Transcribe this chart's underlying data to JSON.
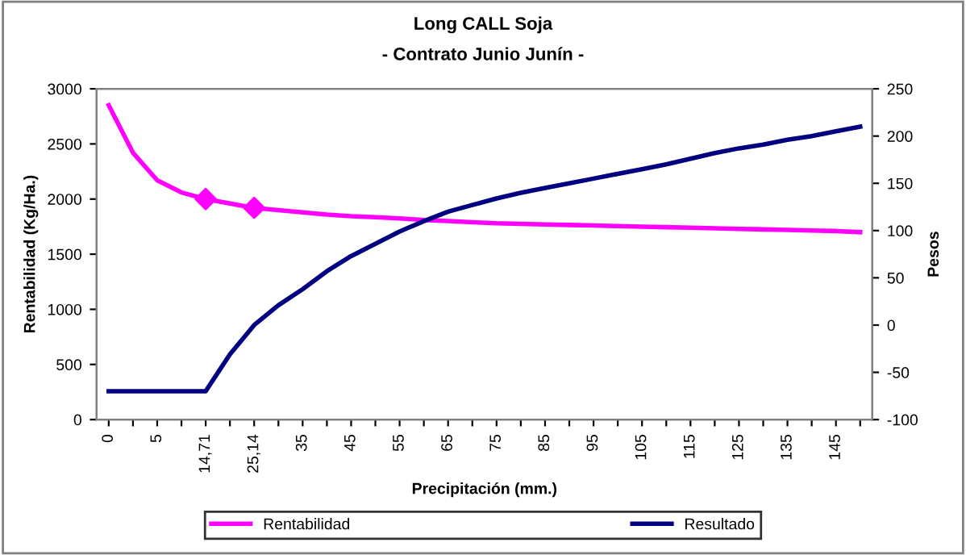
{
  "chart_data": {
    "type": "line",
    "title": "Long CALL Soja",
    "subtitle": "- Contrato Junio Junín -",
    "xlabel": "Precipitación (mm.)",
    "ylabel": "Rentabilidad (Kg/Ha.)",
    "y2label": "Pesos",
    "categories": [
      "0",
      null,
      "5",
      null,
      "14,71",
      null,
      "25,14",
      null,
      "35",
      null,
      "45",
      null,
      "55",
      null,
      "65",
      null,
      "75",
      null,
      "85",
      null,
      "95",
      null,
      "105",
      null,
      "115",
      null,
      "125",
      null,
      "135",
      null,
      "145",
      null
    ],
    "series": [
      {
        "name": "Rentabilidad",
        "color": "#ff00ff",
        "values": [
          2850,
          2420,
          2170,
          2060,
          2000,
          1960,
          1920,
          1900,
          1880,
          1860,
          1845,
          1835,
          1825,
          1810,
          1800,
          1790,
          1780,
          1775,
          1770,
          1765,
          1760,
          1755,
          1750,
          1745,
          1740,
          1735,
          1730,
          1725,
          1720,
          1715,
          1710,
          1700
        ]
      },
      {
        "type": "scatter",
        "marker": "diamond",
        "color": "#ff00ff",
        "values": [
          null,
          null,
          null,
          null,
          2000,
          null,
          1920,
          null,
          null,
          null,
          null,
          null,
          null,
          null,
          null,
          null,
          null,
          null,
          null,
          null,
          null,
          null,
          null,
          null,
          null,
          null,
          null,
          null,
          null,
          null,
          null,
          null
        ]
      },
      {
        "name": "Resultado",
        "color": "#000080",
        "axis": "y2",
        "values": [
          -70,
          -70,
          -70,
          -70,
          -70,
          -31,
          0,
          21,
          38,
          57,
          73,
          86,
          99,
          110,
          120,
          127,
          134,
          140,
          145,
          150,
          155,
          160,
          165,
          170,
          176,
          182,
          187,
          191,
          196,
          200,
          205,
          210
        ]
      }
    ],
    "ylim": [
      0,
      3000
    ],
    "yticks": [
      0,
      500,
      1000,
      1500,
      2000,
      2500,
      3000
    ],
    "y2lim": [
      -100,
      250
    ],
    "y2ticks": [
      -100,
      -50,
      0,
      50,
      100,
      150,
      200,
      250
    ],
    "legend": "bottom",
    "grid": false,
    "marker": "none",
    "line_style": "solid"
  }
}
